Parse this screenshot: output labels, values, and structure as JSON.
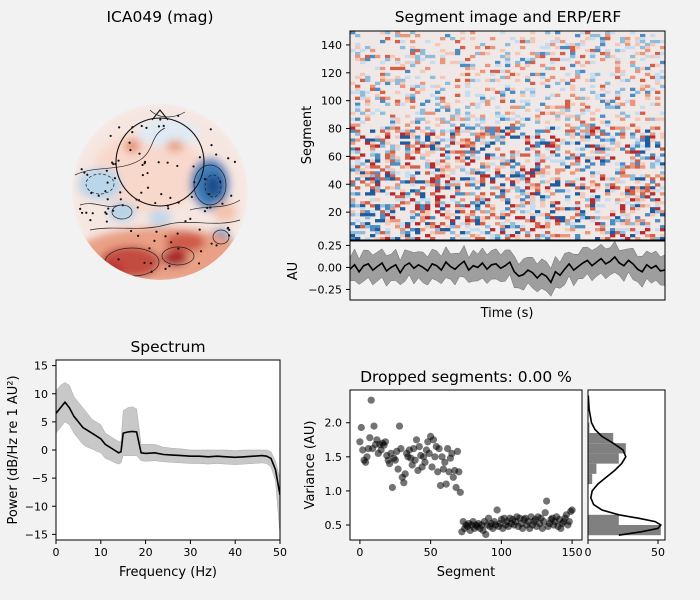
{
  "figure": {
    "topomap_title": "ICA049 (mag)",
    "image_title": "Segment image and ERP/ERF",
    "spectrum_title": "Spectrum",
    "dropped_title": "Dropped segments: 0.00 %"
  },
  "chart_data": [
    {
      "id": "segment-image",
      "type": "heatmap",
      "title": "Segment image and ERP/ERF",
      "ylabel": "Segment",
      "ylim": [
        0,
        150
      ],
      "yticks": [
        20,
        40,
        60,
        80,
        100,
        120,
        140
      ],
      "grid": false
    },
    {
      "id": "erp",
      "type": "line",
      "xlabel": "Time (s)",
      "ylabel": "AU",
      "ylim": [
        -0.37,
        0.3
      ],
      "yticks": [
        "0.25",
        "0.00",
        "−0.25"
      ],
      "yticks_values": [
        0.25,
        0,
        -0.25
      ],
      "values": [
        -0.02,
        0.03,
        -0.05,
        0.02,
        0.04,
        -0.03,
        0.01,
        0.05,
        -0.04,
        0.0,
        0.03,
        -0.06,
        0.02,
        0.05,
        -0.01,
        0.03,
        0.0,
        -0.04,
        0.04,
        0.02,
        -0.03,
        0.06,
        0.01,
        -0.02,
        0.03,
        0.07,
        -0.03,
        0.02,
        0.0,
        0.05,
        -0.02,
        0.03,
        0.04,
        -0.01,
        0.02,
        0.06,
        -0.05,
        -0.1,
        -0.08,
        -0.03,
        -0.06,
        -0.12,
        -0.07,
        -0.1,
        -0.17,
        -0.05,
        -0.09,
        -0.02,
        0.04,
        -0.03,
        0.01,
        0.05,
        0.08,
        0.02,
        0.06,
        0.1,
        0.04,
        0.07,
        0.12,
        0.05,
        0.02,
        0.08,
        0.04,
        -0.02,
        -0.05,
        0.03,
        -0.01,
        0.02,
        -0.04,
        -0.03
      ],
      "grid": false
    },
    {
      "id": "spectrum",
      "type": "area",
      "title": "Spectrum",
      "xlabel": "Frequency (Hz)",
      "ylabel": "Power (dB/Hz re 1 AU²)",
      "xlim": [
        0,
        50
      ],
      "ylim": [
        -16,
        16
      ],
      "xticks": [
        0,
        10,
        20,
        30,
        40,
        50
      ],
      "yticks": [
        -15,
        -10,
        -5,
        0,
        5,
        10,
        15
      ],
      "x": [
        0,
        1,
        2,
        3,
        4,
        5,
        6,
        7,
        8,
        9,
        10,
        11,
        12,
        13,
        14,
        14.5,
        15,
        16,
        17,
        18,
        19,
        20,
        22,
        24,
        26,
        28,
        30,
        32,
        34,
        36,
        38,
        40,
        42,
        44,
        46,
        47,
        48,
        49,
        50
      ],
      "mean": [
        6.5,
        7.5,
        8.5,
        7.5,
        6.0,
        5.0,
        4.0,
        3.5,
        3.0,
        2.5,
        2.0,
        1.0,
        0.5,
        0.0,
        -0.5,
        -0.3,
        3.0,
        3.2,
        3.3,
        3.2,
        -0.5,
        -0.6,
        -0.5,
        -0.8,
        -0.9,
        -1.0,
        -1.1,
        -1.1,
        -1.2,
        -1.1,
        -1.2,
        -1.3,
        -1.2,
        -1.1,
        -1.0,
        -1.1,
        -1.5,
        -3.5,
        -8.0
      ],
      "upper": [
        10.5,
        11.5,
        12.0,
        11.5,
        9.5,
        8.5,
        7.5,
        6.5,
        5.5,
        5.0,
        4.5,
        3.0,
        2.5,
        2.0,
        1.5,
        1.5,
        7.0,
        7.5,
        7.7,
        7.3,
        1.0,
        1.0,
        1.0,
        0.5,
        0.3,
        0.2,
        0.0,
        0.0,
        0.0,
        0.0,
        0.0,
        -0.1,
        0.0,
        0.0,
        0.0,
        0.0,
        -0.3,
        -2.0,
        -5.0
      ],
      "lower": [
        3.0,
        4.0,
        5.0,
        4.5,
        3.0,
        2.0,
        1.0,
        0.5,
        0.2,
        -0.2,
        -0.5,
        -1.5,
        -1.8,
        -2.2,
        -2.5,
        -2.3,
        -1.0,
        -1.0,
        -1.0,
        -1.0,
        -1.9,
        -2.0,
        -1.9,
        -2.1,
        -2.2,
        -2.3,
        -2.4,
        -2.4,
        -2.5,
        -2.4,
        -2.5,
        -2.6,
        -2.5,
        -2.4,
        -2.3,
        -2.4,
        -3.0,
        -5.5,
        -15.0
      ],
      "grid": false
    },
    {
      "id": "dropped-scatter",
      "type": "scatter",
      "title": "Dropped segments: 0.00 %",
      "xlabel": "Segment",
      "ylabel": "Variance (AU)",
      "xlim": [
        -7,
        157
      ],
      "ylim": [
        0.28,
        2.48
      ],
      "xticks": [
        0,
        50,
        100,
        150
      ],
      "yticks": [
        0.5,
        1.0,
        1.5,
        2.0
      ],
      "points": [
        [
          0,
          1.72
        ],
        [
          1,
          1.93
        ],
        [
          2,
          1.6
        ],
        [
          3,
          1.45
        ],
        [
          4,
          1.42
        ],
        [
          5,
          1.5
        ],
        [
          6,
          1.62
        ],
        [
          7,
          1.78
        ],
        [
          8,
          2.33
        ],
        [
          9,
          1.62
        ],
        [
          10,
          1.95
        ],
        [
          11,
          1.68
        ],
        [
          12,
          1.75
        ],
        [
          13,
          1.55
        ],
        [
          14,
          1.68
        ],
        [
          15,
          1.6
        ],
        [
          16,
          1.7
        ],
        [
          17,
          1.67
        ],
        [
          18,
          1.72
        ],
        [
          19,
          1.52
        ],
        [
          20,
          1.45
        ],
        [
          21,
          1.4
        ],
        [
          22,
          1.55
        ],
        [
          23,
          1.05
        ],
        [
          24,
          1.48
        ],
        [
          25,
          1.45
        ],
        [
          26,
          1.58
        ],
        [
          27,
          1.32
        ],
        [
          28,
          1.95
        ],
        [
          29,
          1.62
        ],
        [
          30,
          1.2
        ],
        [
          31,
          1.12
        ],
        [
          32,
          1.25
        ],
        [
          33,
          1.55
        ],
        [
          34,
          1.5
        ],
        [
          35,
          1.6
        ],
        [
          36,
          1.48
        ],
        [
          37,
          1.38
        ],
        [
          38,
          1.62
        ],
        [
          39,
          1.45
        ],
        [
          40,
          1.75
        ],
        [
          41,
          1.3
        ],
        [
          42,
          1.65
        ],
        [
          43,
          1.52
        ],
        [
          44,
          1.35
        ],
        [
          45,
          1.5
        ],
        [
          46,
          1.42
        ],
        [
          47,
          1.6
        ],
        [
          48,
          1.72
        ],
        [
          49,
          1.55
        ],
        [
          50,
          1.8
        ],
        [
          51,
          1.35
        ],
        [
          52,
          1.75
        ],
        [
          53,
          1.5
        ],
        [
          54,
          1.65
        ],
        [
          55,
          1.28
        ],
        [
          56,
          1.62
        ],
        [
          57,
          1.08
        ],
        [
          58,
          1.5
        ],
        [
          59,
          1.32
        ],
        [
          60,
          1.42
        ],
        [
          61,
          1.1
        ],
        [
          62,
          1.62
        ],
        [
          63,
          1.28
        ],
        [
          64,
          1.48
        ],
        [
          65,
          1.55
        ],
        [
          66,
          1.2
        ],
        [
          67,
          1.3
        ],
        [
          68,
          1.05
        ],
        [
          69,
          1.58
        ],
        [
          70,
          1.28
        ],
        [
          71,
          0.98
        ],
        [
          72,
          0.4
        ],
        [
          73,
          0.55
        ],
        [
          74,
          0.45
        ],
        [
          75,
          0.5
        ],
        [
          76,
          0.48
        ],
        [
          77,
          0.52
        ],
        [
          78,
          0.42
        ],
        [
          79,
          0.5
        ],
        [
          80,
          0.55
        ],
        [
          81,
          0.45
        ],
        [
          82,
          0.5
        ],
        [
          83,
          0.48
        ],
        [
          84,
          0.52
        ],
        [
          85,
          0.45
        ],
        [
          86,
          0.5
        ],
        [
          87,
          0.42
        ],
        [
          88,
          0.55
        ],
        [
          89,
          0.36
        ],
        [
          90,
          0.5
        ],
        [
          91,
          0.6
        ],
        [
          92,
          0.48
        ],
        [
          93,
          0.52
        ],
        [
          94,
          0.45
        ],
        [
          95,
          0.55
        ],
        [
          96,
          0.5
        ],
        [
          97,
          0.72
        ],
        [
          98,
          0.48
        ],
        [
          99,
          0.52
        ],
        [
          100,
          0.58
        ],
        [
          101,
          0.45
        ],
        [
          102,
          0.6
        ],
        [
          103,
          0.5
        ],
        [
          104,
          0.55
        ],
        [
          105,
          0.48
        ],
        [
          106,
          0.6
        ],
        [
          107,
          0.52
        ],
        [
          108,
          0.58
        ],
        [
          109,
          0.5
        ],
        [
          110,
          0.55
        ],
        [
          111,
          0.62
        ],
        [
          112,
          0.48
        ],
        [
          113,
          0.6
        ],
        [
          114,
          0.52
        ],
        [
          115,
          0.45
        ],
        [
          116,
          0.58
        ],
        [
          117,
          0.6
        ],
        [
          118,
          0.5
        ],
        [
          119,
          0.55
        ],
        [
          120,
          0.45
        ],
        [
          121,
          0.62
        ],
        [
          122,
          0.5
        ],
        [
          123,
          0.55
        ],
        [
          124,
          0.58
        ],
        [
          125,
          0.48
        ],
        [
          126,
          0.62
        ],
        [
          127,
          0.52
        ],
        [
          128,
          0.6
        ],
        [
          129,
          0.45
        ],
        [
          130,
          0.55
        ],
        [
          131,
          0.68
        ],
        [
          132,
          0.85
        ],
        [
          133,
          0.48
        ],
        [
          134,
          0.52
        ],
        [
          135,
          0.58
        ],
        [
          136,
          0.6
        ],
        [
          137,
          0.5
        ],
        [
          138,
          0.55
        ],
        [
          139,
          0.62
        ],
        [
          140,
          0.48
        ],
        [
          141,
          0.58
        ],
        [
          142,
          0.45
        ],
        [
          143,
          0.52
        ],
        [
          144,
          0.55
        ],
        [
          145,
          0.6
        ],
        [
          146,
          0.65
        ],
        [
          147,
          0.5
        ],
        [
          148,
          0.55
        ],
        [
          149,
          0.7
        ],
        [
          150,
          0.72
        ]
      ],
      "grid": false
    },
    {
      "id": "variance-histogram",
      "type": "bar",
      "xlim": [
        0,
        55
      ],
      "ylim": [
        0.28,
        2.48
      ],
      "xticks": [
        0,
        50
      ],
      "bins": [
        0.35,
        0.5,
        0.65,
        0.8,
        0.95,
        1.1,
        1.25,
        1.4,
        1.55,
        1.7,
        1.85,
        2.0,
        2.15,
        2.3,
        2.45
      ],
      "counts": [
        52,
        22,
        0,
        0,
        0,
        3,
        6,
        22,
        27,
        18,
        1,
        0,
        0,
        0
      ],
      "kde": [
        [
          0.35,
          22
        ],
        [
          0.4,
          38
        ],
        [
          0.45,
          50
        ],
        [
          0.5,
          52
        ],
        [
          0.55,
          48
        ],
        [
          0.6,
          36
        ],
        [
          0.65,
          22
        ],
        [
          0.72,
          10
        ],
        [
          0.8,
          4
        ],
        [
          0.9,
          2
        ],
        [
          1.0,
          3
        ],
        [
          1.1,
          7
        ],
        [
          1.2,
          13
        ],
        [
          1.3,
          19
        ],
        [
          1.4,
          24
        ],
        [
          1.5,
          27
        ],
        [
          1.6,
          25
        ],
        [
          1.7,
          18
        ],
        [
          1.8,
          10
        ],
        [
          1.9,
          5
        ],
        [
          2.0,
          2.5
        ],
        [
          2.2,
          0.8
        ],
        [
          2.4,
          0.2
        ]
      ],
      "grid": false
    }
  ]
}
